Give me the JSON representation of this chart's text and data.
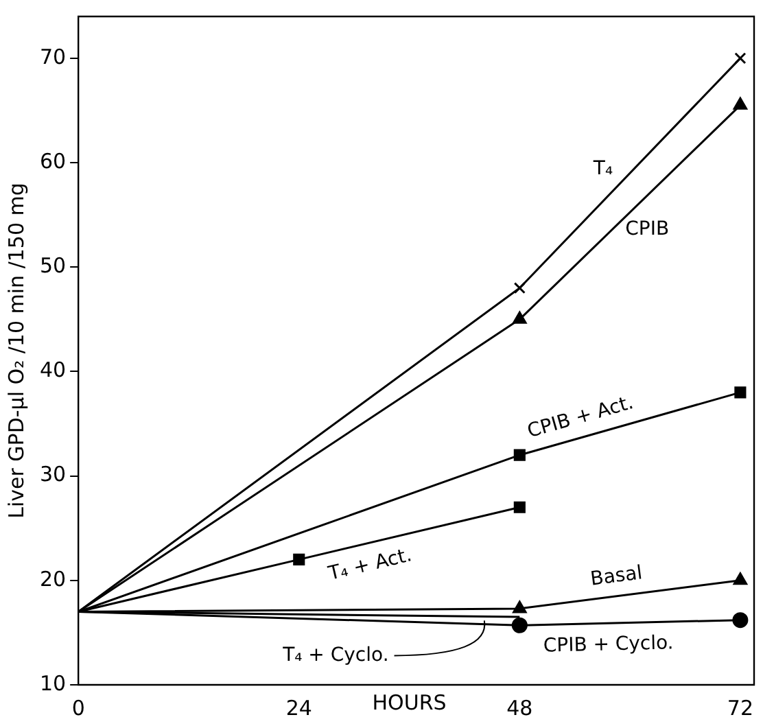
{
  "chart_data": {
    "type": "line",
    "xlabel": "HOURS",
    "ylabel": "Liver GPD-μl O₂ /10 min /150 mg",
    "xlim": [
      0,
      73.5
    ],
    "ylim": [
      10,
      74
    ],
    "xticks": [
      0,
      24,
      48,
      72
    ],
    "yticks": [
      10,
      20,
      30,
      40,
      50,
      60,
      70
    ],
    "grid": false,
    "legend": false,
    "line_style": "solid",
    "series": [
      {
        "name": "T₄",
        "color": "#000000",
        "marker": "cross",
        "x": [
          0,
          48,
          72
        ],
        "values": [
          17,
          48,
          70
        ]
      },
      {
        "name": "CPIB",
        "color": "#000000",
        "marker": "triangle",
        "x": [
          0,
          48,
          72
        ],
        "values": [
          17,
          45,
          65.5
        ]
      },
      {
        "name": "CPIB + Act.",
        "color": "#000000",
        "marker": "square",
        "x": [
          0,
          48,
          72
        ],
        "values": [
          17,
          32,
          38
        ]
      },
      {
        "name": "T₄ + Act.",
        "color": "#000000",
        "marker": "square",
        "x": [
          0,
          24,
          48
        ],
        "values": [
          17,
          22,
          27
        ]
      },
      {
        "name": "Basal",
        "color": "#000000",
        "marker": "triangle",
        "x": [
          0,
          48,
          72
        ],
        "values": [
          17,
          17.3,
          20
        ]
      },
      {
        "name": "CPIB + Cyclo.",
        "color": "#000000",
        "marker": "circle",
        "x": [
          0,
          48,
          72
        ],
        "values": [
          17,
          15.7,
          16.2
        ]
      },
      {
        "name": "T₄ + Cyclo.",
        "color": "#000000",
        "marker": "none",
        "x": [
          0,
          48
        ],
        "values": [
          17,
          16.5
        ]
      }
    ]
  }
}
